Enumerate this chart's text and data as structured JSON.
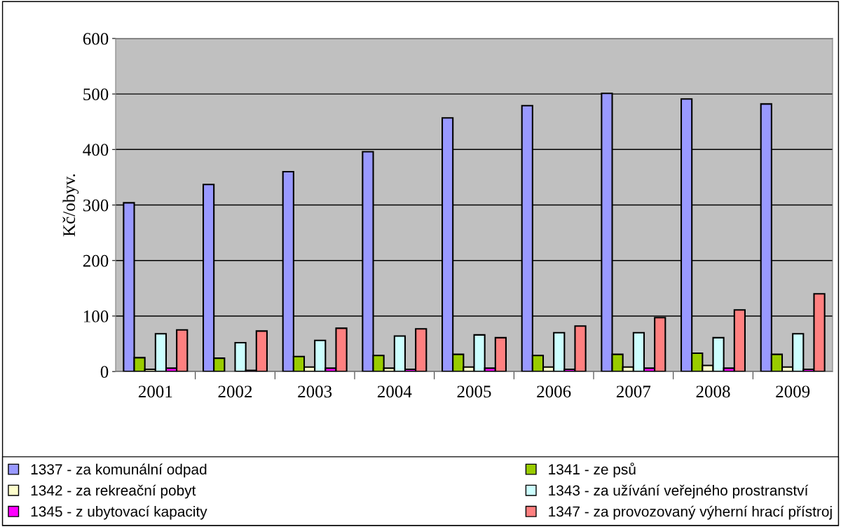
{
  "chart_data": {
    "type": "bar",
    "ylabel": "Kč/obyv.",
    "categories": [
      "2001",
      "2002",
      "2003",
      "2004",
      "2005",
      "2006",
      "2007",
      "2008",
      "2009"
    ],
    "series": [
      {
        "name": "1337 - za komunální odpad",
        "color": "#9999ff",
        "values": [
          304,
          337,
          360,
          396,
          457,
          479,
          501,
          491,
          482
        ]
      },
      {
        "name": "1341 - ze psů",
        "color": "#99cc00",
        "values": [
          25,
          24,
          27,
          29,
          31,
          29,
          31,
          33,
          31
        ]
      },
      {
        "name": "1342 - za rekreační pobyt",
        "color": "#ffffcc",
        "values": [
          4,
          null,
          8,
          6,
          8,
          8,
          8,
          11,
          8
        ]
      },
      {
        "name": "1343 - za užívání veřejného prostranství",
        "color": "#ccffff",
        "values": [
          68,
          52,
          56,
          64,
          66,
          70,
          70,
          61,
          68
        ]
      },
      {
        "name": "1345 - z ubytovací kapacity",
        "color": "#ff00ff",
        "values": [
          6,
          2,
          6,
          4,
          6,
          4,
          6,
          6,
          4
        ]
      },
      {
        "name": "1347 - za provozovaný výherní hrací přístroj",
        "color": "#ff8080",
        "values": [
          75,
          73,
          78,
          77,
          61,
          82,
          97,
          111,
          140
        ]
      }
    ],
    "ylim": [
      0,
      600
    ],
    "yticks": [
      0,
      100,
      200,
      300,
      400,
      500,
      600
    ],
    "grid": "y",
    "legend": "bottom"
  }
}
